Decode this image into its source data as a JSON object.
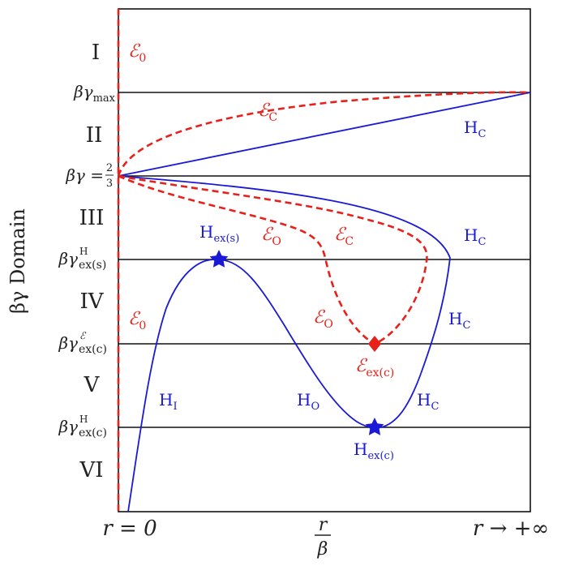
{
  "colors": {
    "frame": "#111111",
    "epsilon_curves": "#e8201a",
    "h_curves": "#1a1ad6",
    "background": "#ffffff"
  },
  "y_axis": {
    "label": "βγ Domain",
    "levels": {
      "gamma_max": {
        "prefix": "βγ",
        "sub": "max"
      },
      "two_thirds": {
        "prefix": "βγ = ",
        "num": "2",
        "den": "3"
      },
      "gamma_ex_s_H": {
        "prefix": "βγ",
        "sup": "H",
        "sub": "ex(s)"
      },
      "gamma_ex_c_E": {
        "prefix": "βγ",
        "sup": "ℰ",
        "sub": "ex(c)"
      },
      "gamma_ex_c_H": {
        "prefix": "βγ",
        "sup": "H",
        "sub": "ex(c)"
      }
    }
  },
  "domains": [
    "I",
    "II",
    "III",
    "IV",
    "V",
    "VI"
  ],
  "x_axis": {
    "left": "r = 0",
    "middle_num": "r",
    "middle_den": "β",
    "right": "r → +∞"
  },
  "labels": {
    "E0": {
      "main": "ℰ",
      "sub": "0"
    },
    "EC": {
      "main": "ℰ",
      "sub": "C"
    },
    "EO": {
      "main": "ℰ",
      "sub": "O"
    },
    "E_ex_c": {
      "main": "ℰ",
      "sub": "ex(c)"
    },
    "HC": {
      "main": "H",
      "sub": "C"
    },
    "HI": {
      "main": "H",
      "sub": "I"
    },
    "HO": {
      "main": "H",
      "sub": "O"
    },
    "H_ex_s": {
      "main": "H",
      "sub": "ex(s)"
    },
    "H_ex_c": {
      "main": "H",
      "sub": "ex(c)"
    }
  },
  "markers": {
    "H_ex_s": "star",
    "H_ex_c": "star",
    "E_ex_c": "diamond"
  }
}
